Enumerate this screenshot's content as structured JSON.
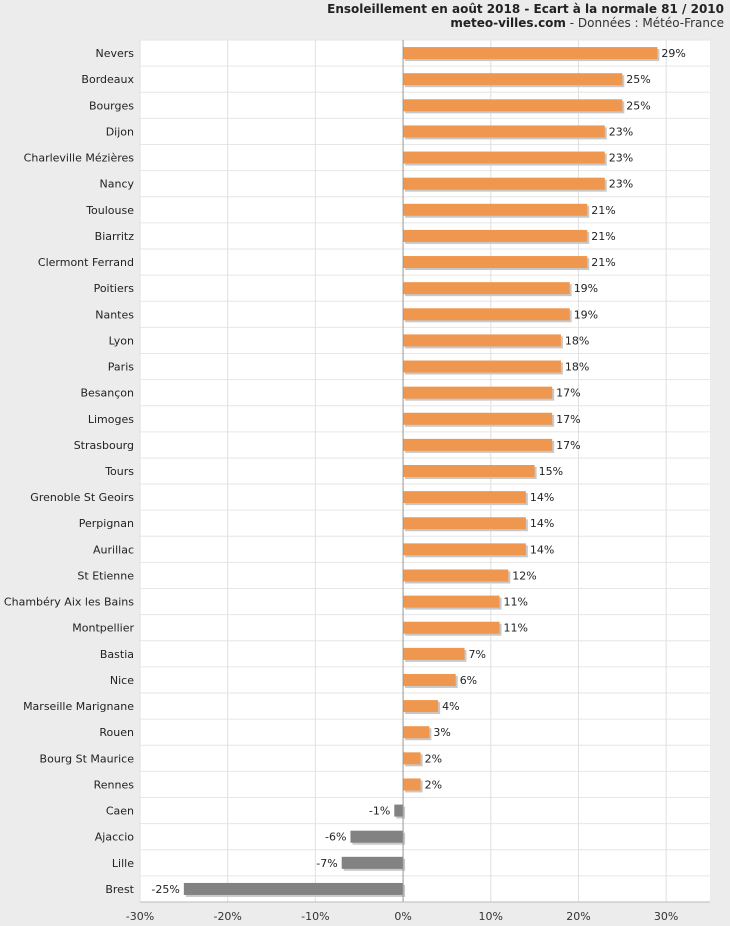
{
  "header": {
    "title": "Ensoleillement en août 2018 - Ecart à la normale 81 / 2010",
    "site": "meteo-villes.com",
    "source": " - Données : Météo-France"
  },
  "colors": {
    "positive": "#f0974f",
    "negative": "#828282",
    "background": "#ececec",
    "plot": "#ffffff"
  },
  "chart_data": {
    "type": "bar",
    "orientation": "horizontal",
    "categories": [
      "Nevers",
      "Bordeaux",
      "Bourges",
      "Dijon",
      "Charleville Mézières",
      "Nancy",
      "Toulouse",
      "Biarritz",
      "Clermont Ferrand",
      "Poitiers",
      "Nantes",
      "Lyon",
      "Paris",
      "Besançon",
      "Limoges",
      "Strasbourg",
      "Tours",
      "Grenoble St Geoirs",
      "Perpignan",
      "Aurillac",
      "St Etienne",
      "Chambéry Aix les Bains",
      "Montpellier",
      "Bastia",
      "Nice",
      "Marseille Marignane",
      "Rouen",
      "Bourg St Maurice",
      "Rennes",
      "Caen",
      "Ajaccio",
      "Lille",
      "Brest"
    ],
    "values": [
      29,
      25,
      25,
      23,
      23,
      23,
      21,
      21,
      21,
      19,
      19,
      18,
      18,
      17,
      17,
      17,
      15,
      14,
      14,
      14,
      12,
      11,
      11,
      7,
      6,
      4,
      3,
      2,
      2,
      -1,
      -6,
      -7,
      -25
    ],
    "labels": [
      "29%",
      "25%",
      "25%",
      "23%",
      "23%",
      "23%",
      "21%",
      "21%",
      "21%",
      "19%",
      "19%",
      "18%",
      "18%",
      "17%",
      "17%",
      "17%",
      "15%",
      "14%",
      "14%",
      "14%",
      "12%",
      "11%",
      "11%",
      "7%",
      "6%",
      "4%",
      "3%",
      "2%",
      "2%",
      "-1%",
      "-6%",
      "-7%",
      "-25%"
    ],
    "x_ticks": [
      "-30%",
      "-20%",
      "-10%",
      "0%",
      "10%",
      "20%",
      "30%"
    ],
    "x_tick_values": [
      -30,
      -20,
      -10,
      0,
      10,
      20,
      30
    ],
    "xlim": [
      -30,
      35
    ],
    "grid": true
  }
}
